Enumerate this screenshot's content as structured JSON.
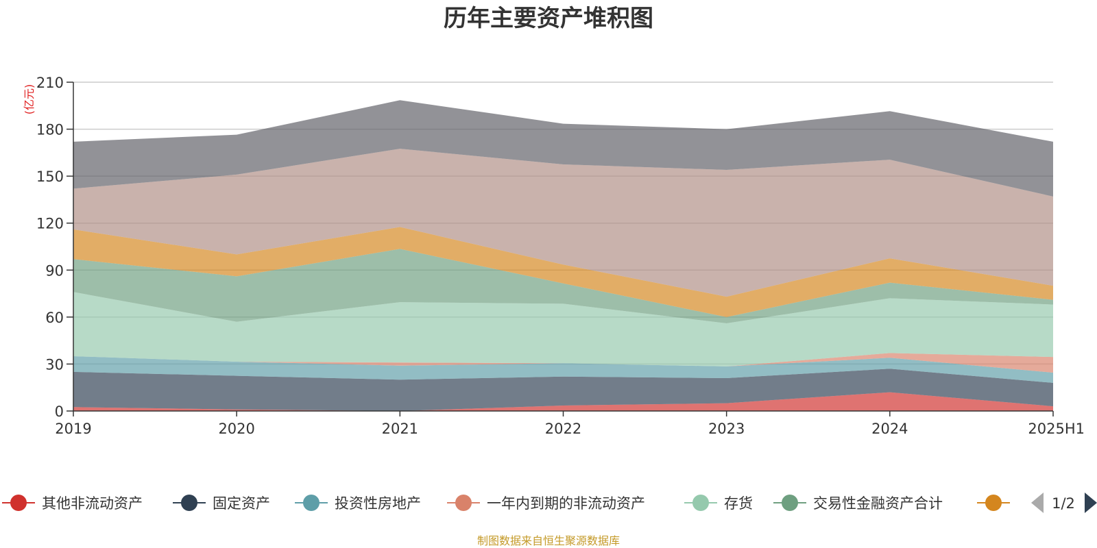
{
  "chart_data": {
    "type": "area",
    "stacked": true,
    "title": "历年主要资产堆积图",
    "unit_label": "(亿元)",
    "categories": [
      "2019",
      "2020",
      "2021",
      "2022",
      "2023",
      "2024",
      "2025H1"
    ],
    "ylim": [
      0,
      210
    ],
    "yticks": [
      "0",
      "30",
      "60",
      "90",
      "120",
      "150",
      "180",
      "210"
    ],
    "grid": true,
    "series": [
      {
        "name": "其他非流动资产",
        "color": "#d0312d",
        "values": [
          2.5,
          1,
          0,
          3.5,
          5,
          12,
          3
        ]
      },
      {
        "name": "固定资产",
        "color": "#2f4052",
        "values": [
          22.5,
          21.5,
          20,
          18.5,
          16,
          15,
          15
        ]
      },
      {
        "name": "投资性房地产",
        "color": "#5e9ea8",
        "values": [
          10,
          9,
          9,
          8.5,
          7.5,
          7,
          6.5
        ]
      },
      {
        "name": "一年内到期的非流动资产",
        "color": "#d9826a",
        "values": [
          0,
          0,
          2,
          0,
          0,
          3,
          10
        ]
      },
      {
        "name": "存货",
        "color": "#95c9ad",
        "values": [
          41,
          25.5,
          38.5,
          38,
          27.5,
          35,
          33.5
        ]
      },
      {
        "name": "交易性金融资产合计",
        "color": "#6e9f80",
        "values": [
          21,
          29,
          34,
          13,
          4,
          10,
          3
        ]
      },
      {
        "name": "",
        "color": "#d4861e",
        "values": [
          19,
          14,
          14,
          12,
          13,
          15.5,
          9
        ]
      },
      {
        "name": "",
        "color": "#b08e84",
        "values": [
          26,
          51,
          50,
          64,
          81,
          63,
          57
        ]
      },
      {
        "name": "",
        "color": "#5e5f66",
        "values": [
          30,
          25.5,
          31,
          26,
          26,
          31,
          35
        ]
      }
    ],
    "legend": {
      "placement": "bottom",
      "items": [
        "其他非流动资产",
        "固定资产",
        "投资性房地产",
        "一年内到期的非流动资产",
        "存货",
        "交易性金融资产合计",
        ""
      ],
      "page": "1/2"
    },
    "footer": "制图数据来自恒生聚源数据库"
  }
}
